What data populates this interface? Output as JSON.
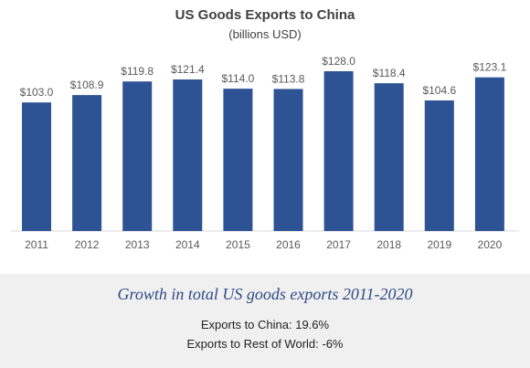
{
  "colors": {
    "bar": "#2e5395",
    "axis": "#d9d9d9",
    "label": "#595959",
    "footer_bg": "#f0f0f0",
    "growth_title": "#2e4b87"
  },
  "chart_data": {
    "type": "bar",
    "title": "US Goods Exports to China",
    "subtitle": "(billions USD)",
    "categories": [
      "2011",
      "2012",
      "2013",
      "2014",
      "2015",
      "2016",
      "2017",
      "2018",
      "2019",
      "2020"
    ],
    "values": [
      103.0,
      108.9,
      119.8,
      121.4,
      114.0,
      113.8,
      128.0,
      118.4,
      104.6,
      123.1
    ],
    "data_labels": [
      "$103.0",
      "$108.9",
      "$119.8",
      "$121.4",
      "$114.0",
      "$113.8",
      "$128.0",
      "$118.4",
      "$104.6",
      "$123.1"
    ],
    "xlabel": "",
    "ylabel": "",
    "ylim": [
      0,
      128
    ],
    "grid": false
  },
  "footer": {
    "growth_title": "Growth in total US goods exports 2011-2020",
    "stat_china": "Exports to China: 19.6%",
    "stat_rest": "Exports to Rest of World: -6%"
  }
}
